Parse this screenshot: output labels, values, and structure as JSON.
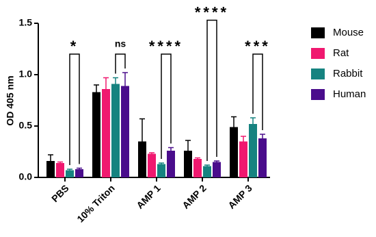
{
  "chart_data": {
    "type": "bar",
    "y_label": "OD 405 nm",
    "categories": [
      "PBS",
      "10% Triton",
      "AMP 1",
      "AMP 2",
      "AMP 3"
    ],
    "ylim": [
      0,
      1.5
    ],
    "yticks": [
      {
        "value": 0,
        "label": "0.0"
      },
      {
        "value": 0.5,
        "label": "0.5"
      },
      {
        "value": 1,
        "label": "1.0"
      },
      {
        "value": 1.5,
        "label": "1.5"
      }
    ],
    "series": [
      {
        "name": "Mouse",
        "color": "#000000",
        "values": [
          0.16,
          0.83,
          0.35,
          0.26,
          0.49
        ],
        "errors": [
          0.06,
          0.07,
          0.22,
          0.1,
          0.1
        ]
      },
      {
        "name": "Rat",
        "color": "#f0186f",
        "values": [
          0.14,
          0.86,
          0.23,
          0.18,
          0.35
        ],
        "errors": [
          0.01,
          0.11,
          0.01,
          0.01,
          0.05
        ]
      },
      {
        "name": "Rabbit",
        "color": "#168380",
        "values": [
          0.07,
          0.91,
          0.13,
          0.11,
          0.52
        ],
        "errors": [
          0.01,
          0.06,
          0.01,
          0.01,
          0.06
        ]
      },
      {
        "name": "Human",
        "color": "#4a0d8c",
        "values": [
          0.08,
          0.89,
          0.26,
          0.15,
          0.38
        ],
        "errors": [
          0.01,
          0.13,
          0.03,
          0.01,
          0.04
        ]
      }
    ],
    "annotations": [
      {
        "label": "*",
        "y": 1.2
      },
      {
        "label": "ns",
        "y": 1.2
      },
      {
        "label": "****",
        "y": 1.2
      },
      {
        "label": "****",
        "y": 1.53
      },
      {
        "label": "***",
        "y": 1.2
      }
    ]
  }
}
